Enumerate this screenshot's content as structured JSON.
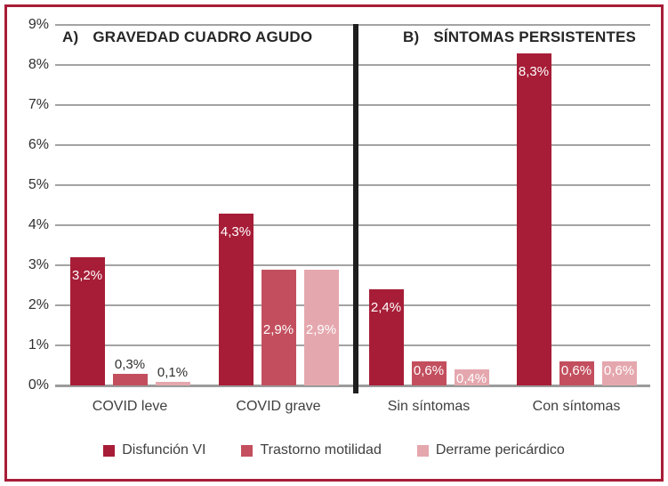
{
  "frame": {
    "border_color": "#A71D37",
    "background_color": "#FFFFFF",
    "divider_color": "#1E1E1E",
    "gridline_color": "#A3A3A3"
  },
  "chart_data": {
    "type": "bar",
    "panels": [
      {
        "label": "A)",
        "title": "GRAVEDAD CUADRO AGUDO"
      },
      {
        "label": "B)",
        "title": "SÍNTOMAS PERSISTENTES"
      }
    ],
    "categories": [
      "COVID leve",
      "COVID grave",
      "Sin síntomas",
      "Con síntomas"
    ],
    "series": [
      {
        "name": "Disfunción VI",
        "color": "#A71D37",
        "values": [
          3.2,
          4.3,
          2.4,
          8.3
        ],
        "value_labels": [
          "3,2%",
          "4,3%",
          "2,4%",
          "8,3%"
        ]
      },
      {
        "name": "Trastorno motilidad",
        "color": "#C34F5E",
        "values": [
          0.3,
          2.9,
          0.6,
          0.6
        ],
        "value_labels": [
          "0,3%",
          "2,9%",
          "0,6%",
          "0,6%"
        ]
      },
      {
        "name": "Derrame pericárdico",
        "color": "#E5A7AE",
        "values": [
          0.1,
          2.9,
          0.4,
          0.6
        ],
        "value_labels": [
          "0,1%",
          "2,9%",
          "0,4%",
          "0,6%"
        ]
      }
    ],
    "value_label_positions": [
      [
        "inside-top",
        "above",
        "above"
      ],
      [
        "inside-top",
        "inside-middle",
        "inside-middle"
      ],
      [
        "inside-top",
        "inside-top",
        "inside-top"
      ],
      [
        "inside-top",
        "inside-top",
        "inside-top"
      ]
    ],
    "ylim": [
      0,
      9
    ],
    "ytick_labels": [
      "0%",
      "1%",
      "2%",
      "3%",
      "4%",
      "5%",
      "6%",
      "7%",
      "8%",
      "9%"
    ],
    "grid": true,
    "legend_position": "bottom"
  }
}
